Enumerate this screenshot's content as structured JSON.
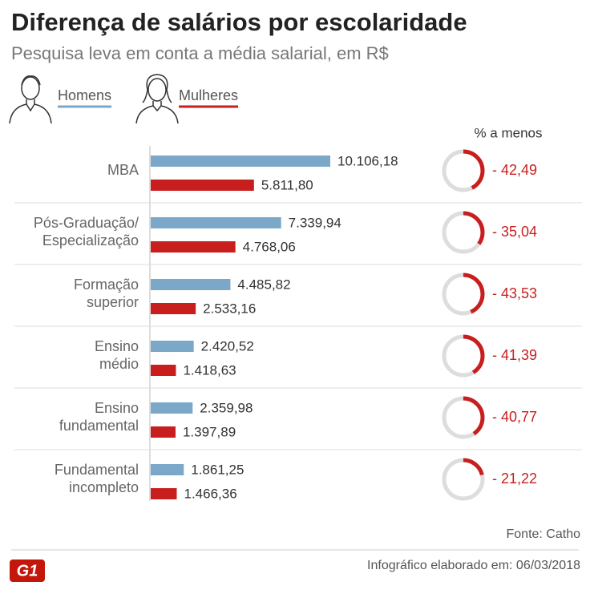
{
  "chart_data": {
    "type": "bar",
    "orientation": "horizontal",
    "title": "Diferença de salários por escolaridade",
    "subtitle": "Pesquisa leva em conta a média salarial, em R$",
    "categories": [
      [
        "MBA"
      ],
      [
        "Pós-Graduação/",
        "Especialização"
      ],
      [
        "Formação",
        "superior"
      ],
      [
        "Ensino",
        "médio"
      ],
      [
        "Ensino",
        "fundamental"
      ],
      [
        "Fundamental",
        "incompleto"
      ]
    ],
    "series": [
      {
        "name": "Homens",
        "color": "#7ba7c9",
        "values": [
          10106.18,
          7339.94,
          4485.82,
          2420.52,
          2359.98,
          1861.25
        ],
        "value_labels": [
          "10.106,18",
          "7.339,94",
          "4.485,82",
          "2.420,52",
          "2.359,98",
          "1.861,25"
        ]
      },
      {
        "name": "Mulheres",
        "color": "#c81e1e",
        "values": [
          5811.8,
          4768.06,
          2533.16,
          1418.63,
          1397.89,
          1466.36
        ],
        "value_labels": [
          "5.811,80",
          "4.768,06",
          "2.533,16",
          "1.418,63",
          "1.397,89",
          "1.466,36"
        ]
      }
    ],
    "difference": {
      "title": "% a menos",
      "color": "#c81e1e",
      "values": [
        -42.49,
        -35.04,
        -43.53,
        -41.39,
        -40.77,
        -21.22
      ],
      "value_labels": [
        "- 42,49",
        "- 35,04",
        "- 43,53",
        "- 41,39",
        "- 40,77",
        "- 21,22"
      ]
    },
    "source": "Fonte: Catho",
    "logo": "G1",
    "footer": "Infográfico elaborado em: 06/03/2018"
  }
}
